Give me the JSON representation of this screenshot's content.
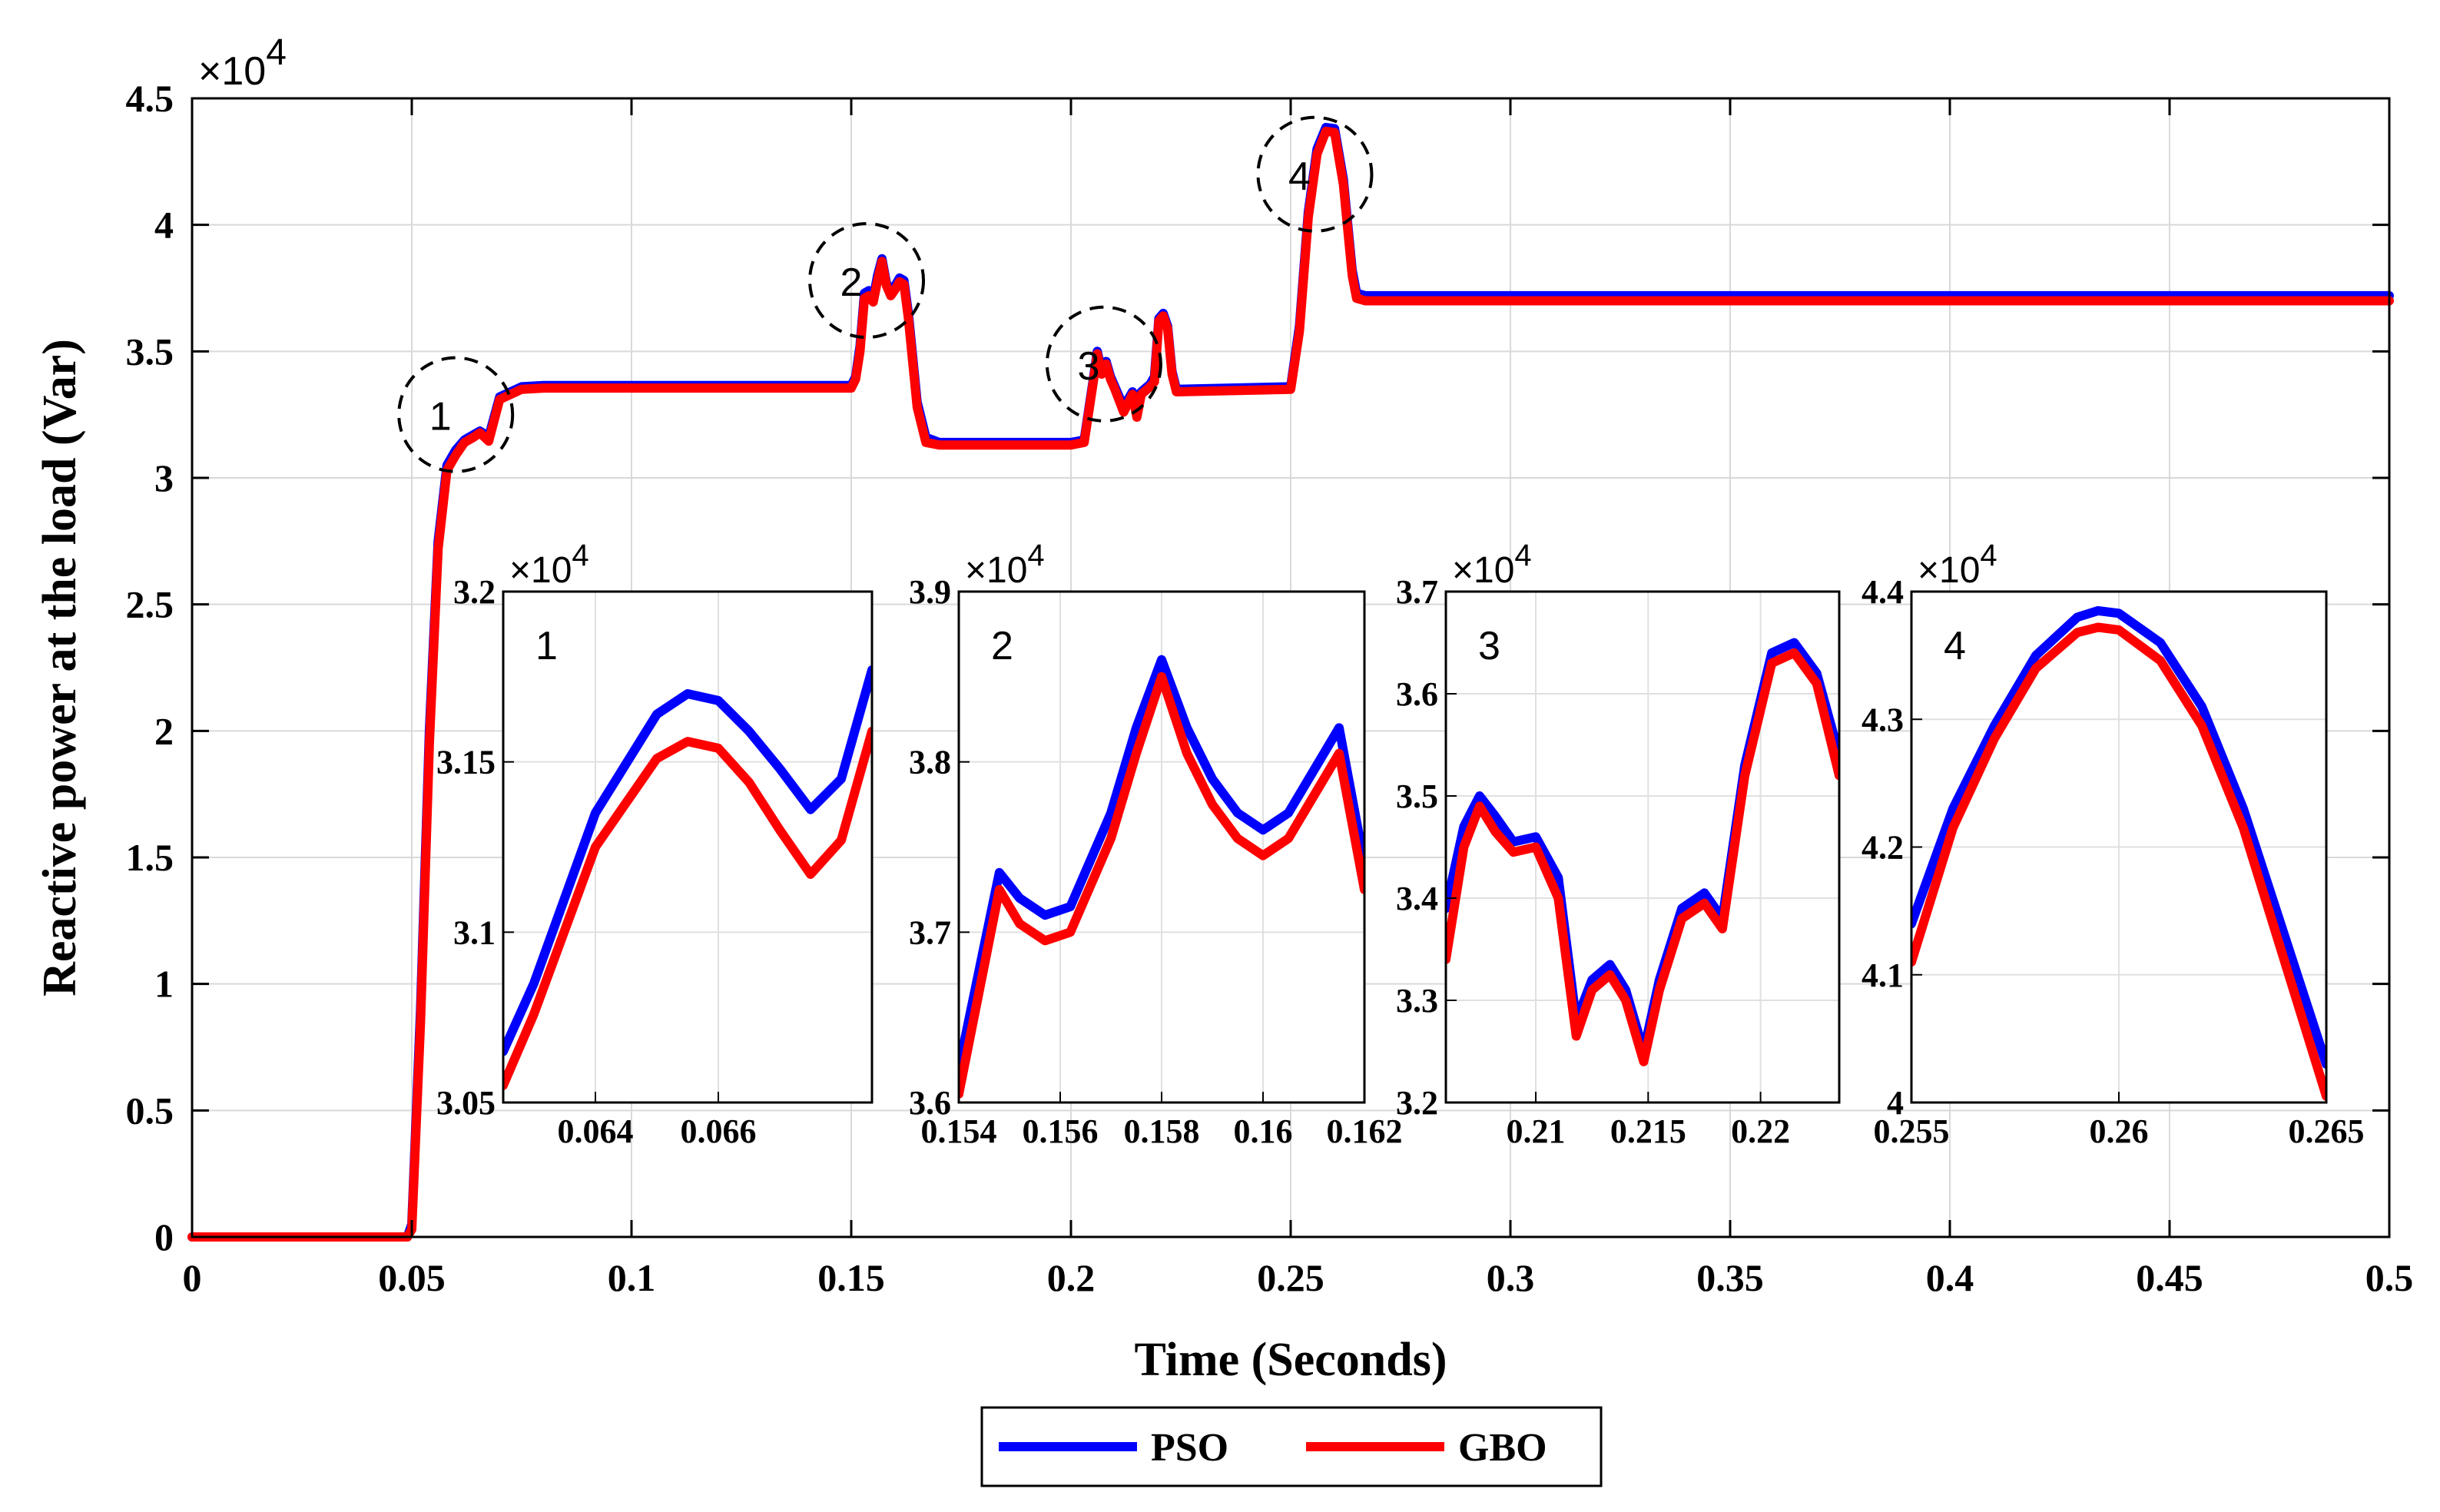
{
  "chart_data": {
    "type": "line",
    "xlabel": "Time (Seconds)",
    "ylabel": "Reactive power at the load (Var)",
    "xlim": [
      0,
      0.5
    ],
    "ylim": [
      0,
      45000
    ],
    "xticks": [
      0,
      0.05,
      0.1,
      0.15,
      0.2,
      0.25,
      0.3,
      0.35,
      0.4,
      0.45,
      0.5
    ],
    "xtick_labels": [
      "0",
      "0.05",
      "0.1",
      "0.15",
      "0.2",
      "0.25",
      "0.3",
      "0.35",
      "0.4",
      "0.45",
      "0.5"
    ],
    "yticks": [
      0,
      5000,
      10000,
      15000,
      20000,
      25000,
      30000,
      35000,
      40000,
      45000
    ],
    "ytick_labels": [
      "0",
      "0.5",
      "1",
      "1.5",
      "2",
      "2.5",
      "3",
      "3.5",
      "4",
      "4.5"
    ],
    "y_multiplier": "×10",
    "y_multiplier_exp": "4",
    "grid": true,
    "legend": {
      "position": "bottom-center",
      "entries": [
        "PSO",
        "GBO"
      ]
    },
    "series": [
      {
        "name": "PSO",
        "color": "#0000ff",
        "x": [
          0,
          0.049,
          0.05,
          0.052,
          0.054,
          0.056,
          0.058,
          0.06,
          0.062,
          0.064,
          0.0655,
          0.0675,
          0.07,
          0.075,
          0.08,
          0.15,
          0.151,
          0.152,
          0.153,
          0.154,
          0.155,
          0.156,
          0.157,
          0.158,
          0.159,
          0.16,
          0.161,
          0.162,
          0.163,
          0.165,
          0.167,
          0.17,
          0.2,
          0.203,
          0.205,
          0.206,
          0.207,
          0.208,
          0.209,
          0.21,
          0.212,
          0.214,
          0.215,
          0.216,
          0.218,
          0.219,
          0.22,
          0.221,
          0.222,
          0.223,
          0.224,
          0.25,
          0.252,
          0.254,
          0.256,
          0.258,
          0.26,
          0.262,
          0.264,
          0.265,
          0.267,
          0.27,
          0.5
        ],
        "y": [
          0,
          0,
          500,
          9000,
          20000,
          27500,
          30500,
          31100,
          31500,
          31700,
          31850,
          31620,
          33200,
          33600,
          33650,
          33650,
          34000,
          35200,
          37300,
          37400,
          37100,
          38000,
          38660,
          37700,
          37400,
          37600,
          37900,
          37800,
          36500,
          33000,
          31600,
          31400,
          31400,
          31500,
          33800,
          35000,
          34200,
          34600,
          34000,
          33600,
          32800,
          33400,
          32500,
          33400,
          33700,
          34000,
          36300,
          36500,
          36000,
          34200,
          33500,
          33600,
          36000,
          40500,
          43000,
          43850,
          43800,
          41800,
          38200,
          37300,
          37200,
          37200,
          37200
        ]
      },
      {
        "name": "GBO",
        "color": "#ff0000",
        "x": [
          0,
          0.049,
          0.05,
          0.052,
          0.054,
          0.056,
          0.058,
          0.06,
          0.062,
          0.064,
          0.0655,
          0.0675,
          0.07,
          0.075,
          0.08,
          0.15,
          0.151,
          0.152,
          0.153,
          0.154,
          0.155,
          0.156,
          0.157,
          0.158,
          0.159,
          0.16,
          0.161,
          0.162,
          0.163,
          0.165,
          0.167,
          0.17,
          0.2,
          0.203,
          0.205,
          0.206,
          0.207,
          0.208,
          0.209,
          0.21,
          0.212,
          0.214,
          0.215,
          0.216,
          0.218,
          0.219,
          0.22,
          0.221,
          0.222,
          0.223,
          0.224,
          0.25,
          0.252,
          0.254,
          0.256,
          0.258,
          0.26,
          0.262,
          0.264,
          0.265,
          0.267,
          0.27,
          0.5
        ],
        "y": [
          0,
          0,
          300,
          8500,
          19500,
          27200,
          30300,
          30900,
          31400,
          31600,
          31780,
          31450,
          33100,
          33500,
          33550,
          33550,
          33900,
          35000,
          37100,
          37200,
          36950,
          37800,
          38550,
          37600,
          37200,
          37450,
          37750,
          37650,
          36300,
          32800,
          31400,
          31300,
          31300,
          31400,
          33700,
          34900,
          34100,
          34500,
          33900,
          33500,
          32600,
          33300,
          32400,
          33300,
          33600,
          33800,
          36200,
          36400,
          35900,
          34100,
          33400,
          33500,
          35800,
          40300,
          42800,
          43700,
          43650,
          41600,
          38000,
          37100,
          37000,
          37000,
          37000
        ]
      }
    ],
    "annotations": [
      {
        "label": "1",
        "x": 0.06,
        "y": 32500
      },
      {
        "label": "2",
        "x": 0.1535,
        "y": 37800
      },
      {
        "label": "3",
        "x": 0.2075,
        "y": 34500
      },
      {
        "label": "4",
        "x": 0.2555,
        "y": 42000
      }
    ],
    "insets": [
      {
        "label": "1",
        "xlim": [
          0.0625,
          0.0685
        ],
        "ylim": [
          30500,
          32000
        ],
        "xticks": [
          0.064,
          0.066
        ],
        "xtick_labels": [
          "0.064",
          "0.066"
        ],
        "yticks": [
          30500,
          31000,
          31500,
          32000
        ],
        "ytick_labels": [
          "3.05",
          "3.1",
          "3.15",
          "3.2"
        ],
        "y_multiplier": "×10",
        "y_multiplier_exp": "4",
        "series": [
          {
            "name": "PSO",
            "x": [
              0.0625,
              0.063,
              0.064,
              0.065,
              0.0655,
              0.066,
              0.0665,
              0.067,
              0.0675,
              0.068,
              0.0685
            ],
            "y": [
              30650,
              30850,
              31350,
              31640,
              31700,
              31680,
              31590,
              31480,
              31360,
              31450,
              31770
            ]
          },
          {
            "name": "GBO",
            "x": [
              0.0625,
              0.063,
              0.064,
              0.065,
              0.0655,
              0.066,
              0.0665,
              0.067,
              0.0675,
              0.068,
              0.0685
            ],
            "y": [
              30550,
              30760,
              31250,
              31510,
              31560,
              31540,
              31440,
              31300,
              31170,
              31270,
              31590
            ]
          }
        ]
      },
      {
        "label": "2",
        "xlim": [
          0.154,
          0.162
        ],
        "ylim": [
          36000,
          39000
        ],
        "xticks": [
          0.154,
          0.156,
          0.158,
          0.16,
          0.162
        ],
        "xtick_labels": [
          "0.154",
          "0.156",
          "0.158",
          "0.16",
          "0.162"
        ],
        "yticks": [
          36000,
          37000,
          38000,
          39000
        ],
        "ytick_labels": [
          "3.6",
          "3.7",
          "3.8",
          "3.9"
        ],
        "y_multiplier": "×10",
        "y_multiplier_exp": "4",
        "series": [
          {
            "name": "PSO",
            "x": [
              0.154,
              0.1548,
              0.1552,
              0.1557,
              0.1562,
              0.157,
              0.1575,
              0.158,
              0.1585,
              0.159,
              0.1595,
              0.16,
              0.1605,
              0.161,
              0.1615,
              0.162
            ],
            "y": [
              36200,
              37350,
              37200,
              37100,
              37150,
              37700,
              38200,
              38600,
              38200,
              37900,
              37700,
              37600,
              37700,
              37950,
              38200,
              37400
            ]
          },
          {
            "name": "GBO",
            "x": [
              0.154,
              0.1548,
              0.1552,
              0.1557,
              0.1562,
              0.157,
              0.1575,
              0.158,
              0.1585,
              0.159,
              0.1595,
              0.16,
              0.1605,
              0.161,
              0.1615,
              0.162
            ],
            "y": [
              36050,
              37250,
              37050,
              36950,
              37000,
              37550,
              38050,
              38500,
              38050,
              37750,
              37550,
              37450,
              37550,
              37800,
              38050,
              37250
            ]
          }
        ]
      },
      {
        "label": "3",
        "xlim": [
          0.206,
          0.2235
        ],
        "ylim": [
          32000,
          37000
        ],
        "xticks": [
          0.21,
          0.215,
          0.22
        ],
        "xtick_labels": [
          "0.21",
          "0.215",
          "0.22"
        ],
        "yticks": [
          32000,
          33000,
          34000,
          35000,
          36000,
          37000
        ],
        "ytick_labels": [
          "3.2",
          "3.3",
          "3.4",
          "3.5",
          "3.6",
          "3.7"
        ],
        "y_multiplier": "×10",
        "y_multiplier_exp": "4",
        "series": [
          {
            "name": "PSO",
            "x": [
              0.206,
              0.2068,
              0.2075,
              0.2082,
              0.209,
              0.21,
              0.211,
              0.2118,
              0.2125,
              0.2133,
              0.214,
              0.2148,
              0.2155,
              0.2165,
              0.2175,
              0.2183,
              0.2193,
              0.2205,
              0.2215,
              0.2225,
              0.2235
            ],
            "y": [
              33900,
              34700,
              35000,
              34800,
              34550,
              34600,
              34200,
              32800,
              33200,
              33350,
              33100,
              32500,
              33200,
              33900,
              34050,
              33800,
              35300,
              36400,
              36500,
              36200,
              35400
            ]
          },
          {
            "name": "GBO",
            "x": [
              0.206,
              0.2068,
              0.2075,
              0.2082,
              0.209,
              0.21,
              0.211,
              0.2118,
              0.2125,
              0.2133,
              0.214,
              0.2148,
              0.2155,
              0.2165,
              0.2175,
              0.2183,
              0.2193,
              0.2205,
              0.2215,
              0.2225,
              0.2235
            ],
            "y": [
              33400,
              34500,
              34900,
              34650,
              34450,
              34500,
              34000,
              32650,
              33100,
              33250,
              33000,
              32400,
              33100,
              33800,
              33950,
              33700,
              35200,
              36300,
              36400,
              36100,
              35200
            ]
          }
        ]
      },
      {
        "label": "4",
        "xlim": [
          0.255,
          0.265
        ],
        "ylim": [
          40000,
          44000
        ],
        "xticks": [
          0.255,
          0.26,
          0.265
        ],
        "xtick_labels": [
          "0.255",
          "0.26",
          "0.265"
        ],
        "yticks": [
          40000,
          41000,
          42000,
          43000,
          44000
        ],
        "ytick_labels": [
          "4",
          "4.1",
          "4.2",
          "4.3",
          "4.4"
        ],
        "y_multiplier": "×10",
        "y_multiplier_exp": "4",
        "series": [
          {
            "name": "PSO",
            "x": [
              0.255,
              0.256,
              0.257,
              0.258,
              0.259,
              0.2595,
              0.26,
              0.261,
              0.262,
              0.263,
              0.264,
              0.265
            ],
            "y": [
              41400,
              42300,
              42950,
              43500,
              43800,
              43850,
              43830,
              43600,
              43100,
              42300,
              41300,
              40300
            ]
          },
          {
            "name": "GBO",
            "x": [
              0.255,
              0.256,
              0.257,
              0.258,
              0.259,
              0.2595,
              0.26,
              0.261,
              0.262,
              0.263,
              0.264,
              0.265
            ],
            "y": [
              41100,
              42150,
              42850,
              43400,
              43680,
              43720,
              43700,
              43460,
              42950,
              42150,
              41100,
              40050
            ]
          }
        ]
      }
    ]
  }
}
